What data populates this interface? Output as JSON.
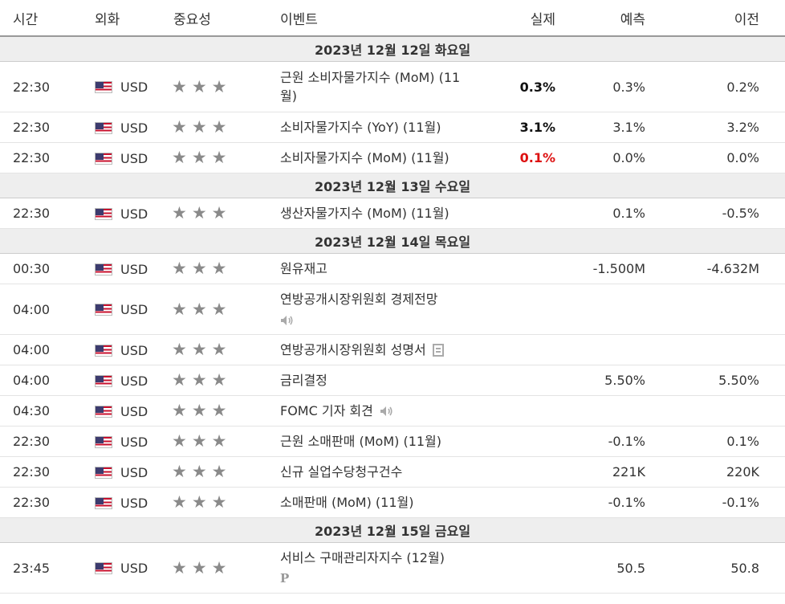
{
  "headers": {
    "time": "시간",
    "currency": "외화",
    "importance": "중요성",
    "event": "이벤트",
    "actual": "실제",
    "forecast": "예측",
    "previous": "이전"
  },
  "colors": {
    "negative_actual": "#dd1111",
    "star": "#8a8a8a",
    "date_band": "#eeeeee"
  },
  "dates": {
    "d1": "2023년 12월 12일 화요일",
    "d2": "2023년 12월 13일 수요일",
    "d3": "2023년 12월 14일 목요일",
    "d4": "2023년 12월 15일 금요일"
  },
  "rows": {
    "r1": {
      "time": "22:30",
      "currency": "USD",
      "event": "근원 소비자물가지수 (MoM) (11월)",
      "actual": "0.3%",
      "forecast": "0.3%",
      "previous": "0.2%"
    },
    "r2": {
      "time": "22:30",
      "currency": "USD",
      "event": "소비자물가지수 (YoY) (11월)",
      "actual": "3.1%",
      "forecast": "3.1%",
      "previous": "3.2%"
    },
    "r3": {
      "time": "22:30",
      "currency": "USD",
      "event": "소비자물가지수 (MoM) (11월)",
      "actual": "0.1%",
      "forecast": "0.0%",
      "previous": "0.0%"
    },
    "r4": {
      "time": "22:30",
      "currency": "USD",
      "event": "생산자물가지수 (MoM) (11월)",
      "actual": "",
      "forecast": "0.1%",
      "previous": "-0.5%"
    },
    "r5": {
      "time": "00:30",
      "currency": "USD",
      "event": "원유재고",
      "actual": "",
      "forecast": "-1.500M",
      "previous": "-4.632M"
    },
    "r6": {
      "time": "04:00",
      "currency": "USD",
      "event": "연방공개시장위원회 경제전망",
      "actual": "",
      "forecast": "",
      "previous": ""
    },
    "r7": {
      "time": "04:00",
      "currency": "USD",
      "event": "연방공개시장위원회 성명서",
      "actual": "",
      "forecast": "",
      "previous": ""
    },
    "r8": {
      "time": "04:00",
      "currency": "USD",
      "event": "금리결정",
      "actual": "",
      "forecast": "5.50%",
      "previous": "5.50%"
    },
    "r9": {
      "time": "04:30",
      "currency": "USD",
      "event": "FOMC 기자 회견",
      "actual": "",
      "forecast": "",
      "previous": ""
    },
    "r10": {
      "time": "22:30",
      "currency": "USD",
      "event": "근원 소매판매 (MoM) (11월)",
      "actual": "",
      "forecast": "-0.1%",
      "previous": "0.1%"
    },
    "r11": {
      "time": "22:30",
      "currency": "USD",
      "event": "신규 실업수당청구건수",
      "actual": "",
      "forecast": "221K",
      "previous": "220K"
    },
    "r12": {
      "time": "22:30",
      "currency": "USD",
      "event": "소매판매 (MoM) (11월)",
      "actual": "",
      "forecast": "-0.1%",
      "previous": "-0.1%"
    },
    "r13": {
      "time": "23:45",
      "currency": "USD",
      "event": "서비스 구매관리자지수 (12월)",
      "actual": "",
      "forecast": "50.5",
      "previous": "50.8",
      "badge": "P"
    }
  },
  "importance_stars": 3,
  "icons": {
    "flag": "us-flag-icon",
    "star": "star-icon",
    "speech": "speaker-icon",
    "release": "document-icon",
    "preliminary": "preliminary-p-icon"
  }
}
